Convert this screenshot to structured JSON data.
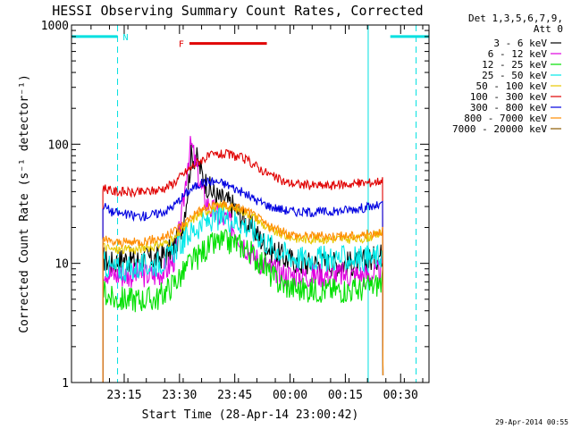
{
  "chart_data": {
    "type": "line",
    "title": "HESSI Observing Summary Count Rates, Corrected",
    "xlabel": "Start Time (28-Apr-14 23:00:42)",
    "ylabel": "Corrected Count Rate (s⁻¹ detector⁻¹)",
    "y_scale": "log",
    "ylim": [
      1,
      1000
    ],
    "xlim_minutes_after_start": [
      0,
      97
    ],
    "x_ticks": [
      {
        "label": "23:15",
        "value": 14.3
      },
      {
        "label": "23:30",
        "value": 29.3
      },
      {
        "label": "23:45",
        "value": 44.3
      },
      {
        "label": "00:00",
        "value": 59.3
      },
      {
        "label": "00:15",
        "value": 74.3
      },
      {
        "label": "00:30",
        "value": 89.3
      }
    ],
    "y_ticks": [
      {
        "label": "1",
        "value": 1
      },
      {
        "label": "10",
        "value": 10
      },
      {
        "label": "100",
        "value": 100
      },
      {
        "label": "1000",
        "value": 1000
      }
    ],
    "grid": false,
    "legend": {
      "position": "right",
      "header": [
        "Det 1,3,5,6,7,9,",
        "Att 0"
      ],
      "entries": [
        {
          "label": "3 - 6 keV",
          "color": "#000000"
        },
        {
          "label": "6 - 12 keV",
          "color": "#e000e0"
        },
        {
          "label": "12 - 25 keV",
          "color": "#00e000"
        },
        {
          "label": "25 - 50 keV",
          "color": "#00e8e8"
        },
        {
          "label": "50 - 100 keV",
          "color": "#e8c800"
        },
        {
          "label": "100 - 300 keV",
          "color": "#e00000"
        },
        {
          "label": "300 - 800 keV",
          "color": "#0000e0"
        },
        {
          "label": "800 - 7000 keV",
          "color": "#ff8c00"
        },
        {
          "label": "7000 - 20000 keV",
          "color": "#8b5a00"
        }
      ]
    },
    "series": [
      {
        "name": "3 - 6 keV",
        "color": "#000000",
        "points": [
          [
            8.5,
            11
          ],
          [
            11,
            10
          ],
          [
            14,
            11
          ],
          [
            17,
            10.5
          ],
          [
            20,
            11
          ],
          [
            23,
            11
          ],
          [
            26,
            12
          ],
          [
            28,
            14
          ],
          [
            30,
            20
          ],
          [
            31.5,
            40
          ],
          [
            32.5,
            80
          ],
          [
            34,
            75
          ],
          [
            36,
            50
          ],
          [
            38,
            40
          ],
          [
            40,
            35
          ],
          [
            42,
            33
          ],
          [
            44,
            30
          ],
          [
            46,
            25
          ],
          [
            48,
            21
          ],
          [
            50,
            18
          ],
          [
            52,
            15
          ],
          [
            54,
            13
          ],
          [
            56,
            12
          ],
          [
            58,
            11
          ],
          [
            62,
            10
          ],
          [
            66,
            10
          ],
          [
            70,
            10
          ],
          [
            74,
            10
          ],
          [
            78,
            10
          ],
          [
            82,
            11
          ],
          [
            84.5,
            12
          ]
        ]
      },
      {
        "name": "6 - 12 keV",
        "color": "#e000e0",
        "points": [
          [
            8.5,
            9
          ],
          [
            11,
            8
          ],
          [
            14,
            8
          ],
          [
            17,
            8
          ],
          [
            20,
            8
          ],
          [
            23,
            8
          ],
          [
            26,
            9
          ],
          [
            28,
            11
          ],
          [
            30,
            25
          ],
          [
            31.5,
            70
          ],
          [
            32.5,
            100
          ],
          [
            34,
            60
          ],
          [
            36,
            35
          ],
          [
            38,
            28
          ],
          [
            40,
            25
          ],
          [
            42,
            23
          ],
          [
            44,
            20
          ],
          [
            46,
            16
          ],
          [
            48,
            13
          ],
          [
            50,
            11
          ],
          [
            52,
            10
          ],
          [
            54,
            9
          ],
          [
            58,
            8
          ],
          [
            62,
            8
          ],
          [
            66,
            8
          ],
          [
            70,
            8
          ],
          [
            74,
            8
          ],
          [
            78,
            8
          ],
          [
            82,
            8
          ],
          [
            84.5,
            9
          ]
        ]
      },
      {
        "name": "12 - 25 keV",
        "color": "#00e000",
        "points": [
          [
            8.5,
            6
          ],
          [
            11,
            5
          ],
          [
            14,
            5
          ],
          [
            17,
            5
          ],
          [
            20,
            5
          ],
          [
            23,
            5
          ],
          [
            26,
            6
          ],
          [
            28,
            7
          ],
          [
            30,
            8
          ],
          [
            32,
            10
          ],
          [
            34,
            11
          ],
          [
            36,
            13
          ],
          [
            38,
            14
          ],
          [
            40,
            15
          ],
          [
            42,
            15
          ],
          [
            44,
            15
          ],
          [
            46,
            14
          ],
          [
            48,
            13
          ],
          [
            50,
            11
          ],
          [
            52,
            10
          ],
          [
            54,
            8
          ],
          [
            56,
            7
          ],
          [
            58,
            6.5
          ],
          [
            62,
            6
          ],
          [
            66,
            6
          ],
          [
            70,
            6
          ],
          [
            74,
            6
          ],
          [
            78,
            6
          ],
          [
            82,
            6.5
          ],
          [
            84.5,
            7
          ]
        ]
      },
      {
        "name": "25 - 50 keV",
        "color": "#00e8e8",
        "points": [
          [
            8.5,
            10
          ],
          [
            11,
            9
          ],
          [
            14,
            9
          ],
          [
            17,
            9
          ],
          [
            20,
            9.5
          ],
          [
            23,
            10
          ],
          [
            26,
            11
          ],
          [
            28,
            13
          ],
          [
            30,
            15
          ],
          [
            32,
            18
          ],
          [
            34,
            20
          ],
          [
            36,
            22
          ],
          [
            38,
            23
          ],
          [
            40,
            24
          ],
          [
            42,
            24
          ],
          [
            44,
            23
          ],
          [
            46,
            22
          ],
          [
            48,
            20
          ],
          [
            50,
            18
          ],
          [
            52,
            16
          ],
          [
            54,
            14
          ],
          [
            56,
            13
          ],
          [
            58,
            12
          ],
          [
            62,
            11
          ],
          [
            66,
            11
          ],
          [
            70,
            11
          ],
          [
            74,
            11
          ],
          [
            78,
            11
          ],
          [
            82,
            11
          ],
          [
            84.5,
            12
          ]
        ]
      },
      {
        "name": "50 - 100 keV",
        "color": "#e8c800",
        "points": [
          [
            8.5,
            14
          ],
          [
            11,
            13
          ],
          [
            14,
            13
          ],
          [
            17,
            13
          ],
          [
            20,
            13.5
          ],
          [
            23,
            14
          ],
          [
            26,
            15
          ],
          [
            28,
            16
          ],
          [
            30,
            19
          ],
          [
            32,
            22
          ],
          [
            34,
            25
          ],
          [
            36,
            27
          ],
          [
            38,
            29
          ],
          [
            40,
            30
          ],
          [
            42,
            30
          ],
          [
            44,
            29
          ],
          [
            46,
            28
          ],
          [
            48,
            26
          ],
          [
            50,
            24
          ],
          [
            52,
            21
          ],
          [
            54,
            19
          ],
          [
            56,
            18
          ],
          [
            58,
            17
          ],
          [
            62,
            16
          ],
          [
            66,
            16
          ],
          [
            70,
            16
          ],
          [
            74,
            16
          ],
          [
            78,
            16
          ],
          [
            82,
            17
          ],
          [
            84.5,
            18
          ]
        ]
      },
      {
        "name": "100 - 300 keV",
        "color": "#e00000",
        "points": [
          [
            8.5,
            44
          ],
          [
            11,
            40
          ],
          [
            14,
            40
          ],
          [
            17,
            39
          ],
          [
            20,
            40
          ],
          [
            23,
            41
          ],
          [
            26,
            44
          ],
          [
            28,
            48
          ],
          [
            30,
            55
          ],
          [
            32,
            62
          ],
          [
            34,
            70
          ],
          [
            36,
            76
          ],
          [
            38,
            80
          ],
          [
            40,
            82
          ],
          [
            42,
            82
          ],
          [
            44,
            80
          ],
          [
            46,
            77
          ],
          [
            48,
            72
          ],
          [
            50,
            66
          ],
          [
            52,
            60
          ],
          [
            54,
            55
          ],
          [
            56,
            51
          ],
          [
            58,
            48
          ],
          [
            62,
            46
          ],
          [
            66,
            45
          ],
          [
            70,
            45
          ],
          [
            74,
            46
          ],
          [
            78,
            47
          ],
          [
            82,
            48
          ],
          [
            84.5,
            50
          ]
        ]
      },
      {
        "name": "300 - 800 keV",
        "color": "#0000e0",
        "points": [
          [
            8.5,
            31
          ],
          [
            11,
            27
          ],
          [
            14,
            26
          ],
          [
            17,
            25
          ],
          [
            20,
            25
          ],
          [
            23,
            26
          ],
          [
            26,
            28
          ],
          [
            28,
            31
          ],
          [
            30,
            36
          ],
          [
            32,
            41
          ],
          [
            34,
            45
          ],
          [
            36,
            48
          ],
          [
            38,
            49
          ],
          [
            40,
            48
          ],
          [
            42,
            46
          ],
          [
            44,
            43
          ],
          [
            46,
            40
          ],
          [
            48,
            37
          ],
          [
            50,
            34
          ],
          [
            52,
            32
          ],
          [
            54,
            30
          ],
          [
            56,
            29
          ],
          [
            58,
            28
          ],
          [
            62,
            27
          ],
          [
            66,
            27
          ],
          [
            70,
            27
          ],
          [
            74,
            28
          ],
          [
            78,
            29
          ],
          [
            82,
            30
          ],
          [
            84.5,
            31
          ]
        ]
      },
      {
        "name": "800 - 7000 keV",
        "color": "#ff8c00",
        "points": [
          [
            8.5,
            16
          ],
          [
            11,
            15
          ],
          [
            14,
            15
          ],
          [
            17,
            15
          ],
          [
            20,
            15.5
          ],
          [
            23,
            16
          ],
          [
            26,
            17
          ],
          [
            28,
            19
          ],
          [
            30,
            21
          ],
          [
            32,
            24
          ],
          [
            34,
            27
          ],
          [
            36,
            29
          ],
          [
            38,
            30
          ],
          [
            40,
            31
          ],
          [
            42,
            31
          ],
          [
            44,
            30
          ],
          [
            46,
            29
          ],
          [
            48,
            27
          ],
          [
            50,
            25
          ],
          [
            52,
            22
          ],
          [
            54,
            20
          ],
          [
            56,
            19
          ],
          [
            58,
            18
          ],
          [
            62,
            17
          ],
          [
            66,
            17
          ],
          [
            70,
            17
          ],
          [
            74,
            17
          ],
          [
            78,
            17
          ],
          [
            82,
            18
          ],
          [
            84.5,
            19
          ]
        ]
      }
    ],
    "annotations": [
      {
        "label": "N",
        "color": "#00e0e0",
        "start": 0,
        "end": 12.5,
        "y": 800
      },
      {
        "label": "",
        "color": "#00e0e0",
        "start": 86.5,
        "end": 97,
        "y": 800
      },
      {
        "label": "F",
        "color": "#e00000",
        "start": 32,
        "end": 53,
        "y": 700
      }
    ],
    "vertical_markers": [
      {
        "value": 0,
        "style": "solid",
        "color": "#00e0e0"
      },
      {
        "value": 12.5,
        "style": "dashed",
        "color": "#00e0e0"
      },
      {
        "value": 80.5,
        "style": "solid",
        "color": "#00e0e0"
      },
      {
        "value": 93.5,
        "style": "dashed",
        "color": "#00e0e0"
      }
    ],
    "footer": "29-Apr-2014 00:55"
  }
}
